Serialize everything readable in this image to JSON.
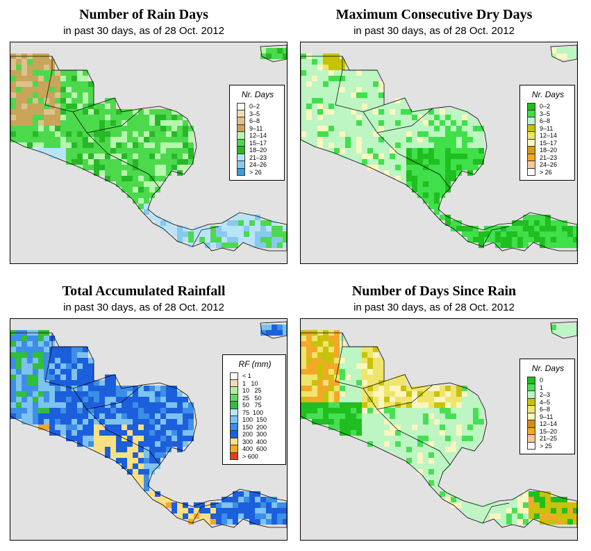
{
  "panels": [
    {
      "title": "Number of Rain Days",
      "subtitle": "in past 30 days, as of  28 Oct. 2012",
      "legend": {
        "title": "Nr. Days",
        "items": [
          {
            "label": "0–2",
            "color": "#fdfaf0"
          },
          {
            "label": "3–5",
            "color": "#eedcb8"
          },
          {
            "label": "6–8",
            "color": "#dcc28e"
          },
          {
            "label": "9–11",
            "color": "#c9a55a"
          },
          {
            "label": "12–14",
            "color": "#b8f5b0"
          },
          {
            "label": "15–17",
            "color": "#4cd94c"
          },
          {
            "label": "18–20",
            "color": "#27b827"
          },
          {
            "label": "21–23",
            "color": "#b9e3f8"
          },
          {
            "label": "24–26",
            "color": "#87c9ef"
          },
          {
            "label": "> 26",
            "color": "#3a9de0"
          }
        ]
      }
    },
    {
      "title": "Maximum Consecutive Dry Days",
      "subtitle": "in past 30 days, as of  28 Oct. 2012",
      "legend": {
        "title": "Nr. Days",
        "items": [
          {
            "label": "0–2",
            "color": "#1fbf1f"
          },
          {
            "label": "3–5",
            "color": "#3fe04a"
          },
          {
            "label": "6–8",
            "color": "#bdf5c3"
          },
          {
            "label": "9–11",
            "color": "#c6c400"
          },
          {
            "label": "12–14",
            "color": "#ebe56a"
          },
          {
            "label": "15–17",
            "color": "#fbf7c0"
          },
          {
            "label": "18–20",
            "color": "#d99a1a"
          },
          {
            "label": "21–23",
            "color": "#f4a61d"
          },
          {
            "label": "24–26",
            "color": "#f6c79a"
          },
          {
            "label": "> 26",
            "color": "#ffffff"
          }
        ]
      }
    },
    {
      "title": "Total Accumulated Rainfall",
      "subtitle": "in past 30 days, as of  28 Oct. 2012",
      "legend": {
        "title": "RF (mm)",
        "items": [
          {
            "label": "< 1",
            "color": "#ffffff"
          },
          {
            "label": "1   10",
            "color": "#f2dcb4"
          },
          {
            "label": "10   25",
            "color": "#aef0a0"
          },
          {
            "label": "25   50",
            "color": "#62d862"
          },
          {
            "label": "50   75",
            "color": "#2fbf3a"
          },
          {
            "label": "75  100",
            "color": "#b5e6fb"
          },
          {
            "label": "100  150",
            "color": "#7ec2f0"
          },
          {
            "label": "150  200",
            "color": "#3c8ee6"
          },
          {
            "label": "200  300",
            "color": "#1c5fdc"
          },
          {
            "label": "300  400",
            "color": "#fbe083"
          },
          {
            "label": "400  600",
            "color": "#f6a623"
          },
          {
            "label": "> 600",
            "color": "#ef3a1d"
          }
        ]
      }
    },
    {
      "title": "Number of Days Since Rain",
      "subtitle": "in past 30 days, as of  28 Oct. 2012",
      "legend": {
        "title": "Nr. Days",
        "items": [
          {
            "label": "0",
            "color": "#1fbf1f"
          },
          {
            "label": "1",
            "color": "#48df55"
          },
          {
            "label": "2–3",
            "color": "#bdf5c3"
          },
          {
            "label": "4–5",
            "color": "#c9c20a"
          },
          {
            "label": "6–8",
            "color": "#efe56c"
          },
          {
            "label": "9–11",
            "color": "#fbf5bf"
          },
          {
            "label": "12–14",
            "color": "#d68c16"
          },
          {
            "label": "15–20",
            "color": "#f4a82a"
          },
          {
            "label": "21–25",
            "color": "#f6c6a0"
          },
          {
            "label": "> 25",
            "color": "#ffffff"
          }
        ]
      }
    }
  ]
}
